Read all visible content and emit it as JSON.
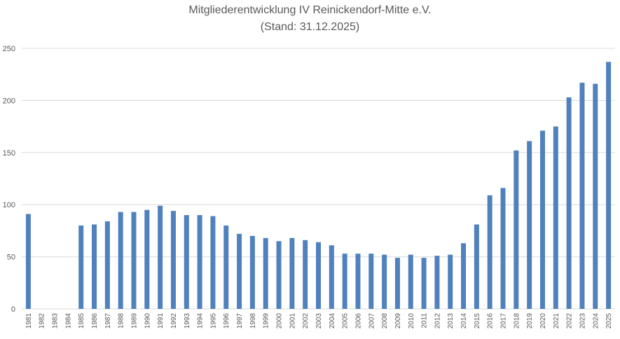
{
  "chart_data": {
    "type": "bar",
    "title": "Mitgliederentwicklung IV Reinickendorf-Mitte e.V.",
    "subtitle": "(Stand: 31.12.2025)",
    "xlabel": "",
    "ylabel": "",
    "ylim": [
      0,
      250
    ],
    "yticks": [
      0,
      50,
      100,
      150,
      200,
      250
    ],
    "grid": true,
    "bar_color": "#4f81bd",
    "categories": [
      "1981",
      "1982",
      "1983",
      "1984",
      "1985",
      "1986",
      "1987",
      "1988",
      "1989",
      "1990",
      "1991",
      "1992",
      "1993",
      "1994",
      "1995",
      "1996",
      "1997",
      "1998",
      "1999",
      "2000",
      "2001",
      "2002",
      "2003",
      "2004",
      "2005",
      "2006",
      "2007",
      "2008",
      "2009",
      "2010",
      "2011",
      "2012",
      "2013",
      "2014",
      "2015",
      "2016",
      "2017",
      "2018",
      "2019",
      "2020",
      "2021",
      "2022",
      "2023",
      "2024",
      "2025"
    ],
    "values": [
      91,
      0,
      0,
      0,
      80,
      81,
      84,
      93,
      93,
      95,
      99,
      94,
      90,
      90,
      89,
      80,
      72,
      70,
      68,
      65,
      68,
      66,
      64,
      61,
      53,
      53,
      53,
      52,
      49,
      52,
      49,
      51,
      52,
      63,
      81,
      109,
      116,
      152,
      161,
      171,
      175,
      203,
      217,
      216,
      237
    ]
  }
}
